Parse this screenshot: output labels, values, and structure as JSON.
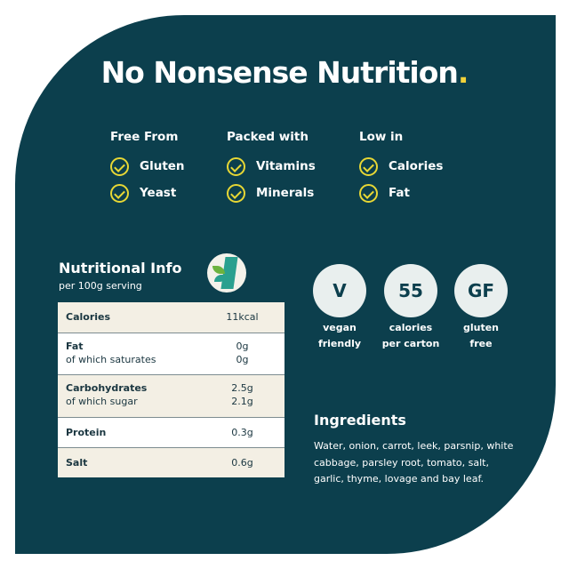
{
  "title": "No Nonsense Nutrition",
  "title_dot": ".",
  "columns": [
    {
      "heading": "Free From",
      "items": [
        "Gluten",
        "Yeast"
      ]
    },
    {
      "heading": "Packed with",
      "items": [
        "Vitamins",
        "Minerals"
      ]
    },
    {
      "heading": "Low in",
      "items": [
        "Calories",
        "Fat"
      ]
    }
  ],
  "nutrition": {
    "heading": "Nutritional Info",
    "subheading": "per 100g serving",
    "rows": [
      {
        "label": "Calories",
        "value": "11kcal"
      },
      {
        "label": "Fat",
        "value": "0g",
        "sub_label": "of which saturates",
        "sub_value": "0g"
      },
      {
        "label": "Carbohydrates",
        "value": "2.5g",
        "sub_label": "of which sugar",
        "sub_value": "2.1g"
      },
      {
        "label": "Protein",
        "value": "0.3g"
      },
      {
        "label": "Salt",
        "value": "0.6g"
      }
    ]
  },
  "badges": [
    {
      "symbol": "V",
      "line1": "vegan",
      "line2": "friendly"
    },
    {
      "symbol": "55",
      "line1": "calories",
      "line2": "per carton"
    },
    {
      "symbol": "GF",
      "line1": "gluten",
      "line2": "free"
    }
  ],
  "ingredients": {
    "heading": "Ingredients",
    "text": "Water, onion, carrot, leek, parsnip, white cabbage, parsley root, tomato, salt, garlic, thyme, lovage and bay leaf."
  },
  "colors": {
    "panel": "#0c3f4d",
    "accent": "#e7d735"
  }
}
